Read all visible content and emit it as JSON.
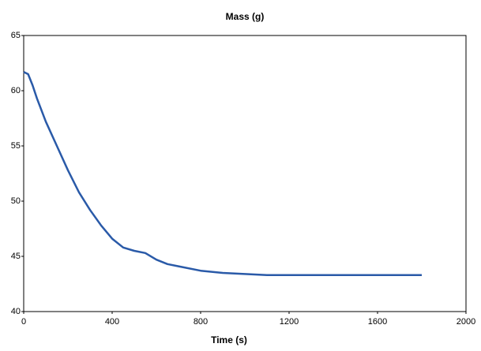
{
  "chart_data": {
    "type": "line",
    "title": "Mass (g)",
    "x_label": "Time (s)",
    "x": [
      0,
      20,
      40,
      60,
      100,
      150,
      200,
      250,
      300,
      350,
      400,
      450,
      500,
      550,
      600,
      650,
      700,
      800,
      900,
      1000,
      1100,
      1200,
      1400,
      1600,
      1800
    ],
    "series": [
      {
        "name": "Mass",
        "color": "#2a5aa8",
        "values": [
          61.7,
          61.5,
          60.5,
          59.3,
          57.2,
          55,
          52.8,
          50.8,
          49.2,
          47.8,
          46.6,
          45.8,
          45.5,
          45.3,
          44.7,
          44.3,
          44.1,
          43.7,
          43.5,
          43.4,
          43.3,
          43.3,
          43.3,
          43.3,
          43.3
        ]
      }
    ],
    "xlim": [
      0,
      2000
    ],
    "xticks": [
      0,
      400,
      800,
      1200,
      1600,
      2000
    ],
    "ylim": [
      40,
      65
    ],
    "yticks": [
      40,
      45,
      50,
      55,
      60,
      65
    ]
  }
}
